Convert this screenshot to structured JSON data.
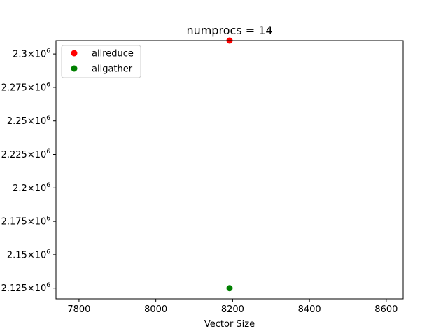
{
  "chart_data": {
    "type": "scatter",
    "title": "numprocs = 14",
    "xlabel": "Vector Size",
    "ylabel": "",
    "xlim": [
      7740,
      8644
    ],
    "ylim": [
      2117000,
      2310000
    ],
    "x_ticks": [
      7800,
      8000,
      8200,
      8400,
      8600
    ],
    "x_tick_labels": [
      "7800",
      "8000",
      "8200",
      "8400",
      "8600"
    ],
    "y_ticks": [
      2125000,
      2150000,
      2175000,
      2200000,
      2225000,
      2250000,
      2275000,
      2300000
    ],
    "y_tick_labels": [
      {
        "mantissa": "2.125",
        "exp": "6"
      },
      {
        "mantissa": "2.15",
        "exp": "6"
      },
      {
        "mantissa": "2.175",
        "exp": "6"
      },
      {
        "mantissa": "2.2",
        "exp": "6"
      },
      {
        "mantissa": "2.225",
        "exp": "6"
      },
      {
        "mantissa": "2.25",
        "exp": "6"
      },
      {
        "mantissa": "2.275",
        "exp": "6"
      },
      {
        "mantissa": "2.3",
        "exp": "6"
      }
    ],
    "grid": false,
    "legend_position": "top-left",
    "series": [
      {
        "name": "allreduce",
        "color": "#ff0000",
        "points": [
          {
            "x": 8192,
            "y": 2310000
          }
        ]
      },
      {
        "name": "allgather",
        "color": "#008000",
        "points": [
          {
            "x": 8192,
            "y": 2125000
          }
        ]
      }
    ]
  }
}
